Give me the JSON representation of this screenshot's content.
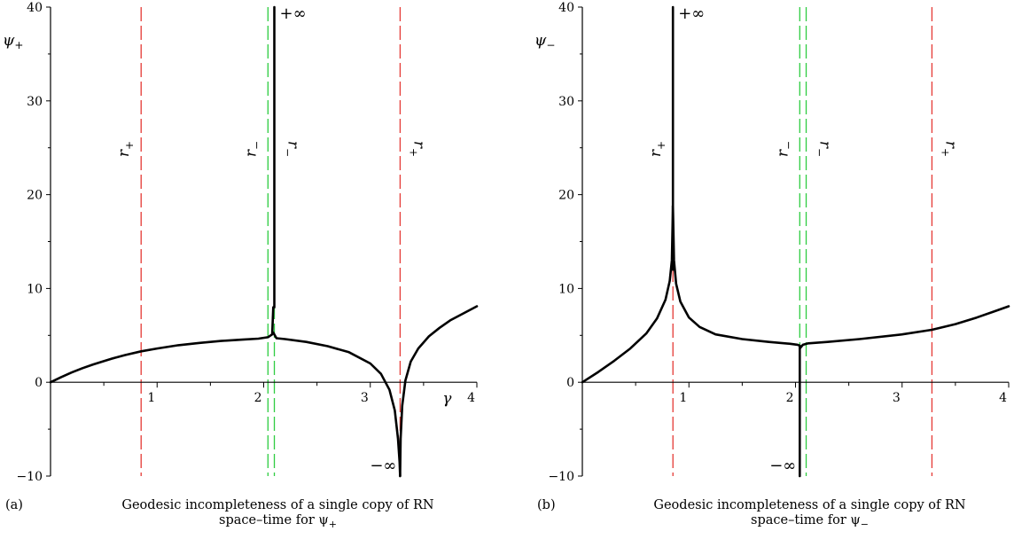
{
  "chart_data": [
    {
      "type": "line",
      "panel_tag": "(a)",
      "caption_line1": "Geodesic incompleteness of a single copy of RN",
      "caption_line2": "space–time for ψ",
      "caption_sub": "+",
      "ylabel": "ψ",
      "ylabel_sub": "+",
      "xlabel": "γ",
      "xlim": [
        0,
        4
      ],
      "ylim": [
        -10,
        40
      ],
      "x_ticks": [
        "1",
        "2",
        "3",
        "4"
      ],
      "y_ticks": [
        "−10",
        "0",
        "10",
        "20",
        "30",
        "40"
      ],
      "y_tick_values": [
        -10,
        0,
        10,
        20,
        30,
        40
      ],
      "x_tick_values": [
        1,
        2,
        3,
        4
      ],
      "vlines": [
        {
          "x": 0.85,
          "color": "#e53935",
          "label": "r",
          "label_sub": "+",
          "label_side": "left",
          "label_dir": "up"
        },
        {
          "x": 2.04,
          "color": "#2ecc40",
          "label": "r",
          "label_sub": "−",
          "label_side": "left",
          "label_dir": "up"
        },
        {
          "x": 2.1,
          "color": "#2ecc40",
          "label": "r",
          "label_sub": "−",
          "label_side": "right",
          "label_dir": "down"
        },
        {
          "x": 3.28,
          "color": "#e53935",
          "label": "r",
          "label_sub": "+",
          "label_side": "right",
          "label_dir": "down"
        }
      ],
      "annotations": [
        {
          "text": "+∞",
          "x": 2.1,
          "y": 40,
          "anchor": "top-right"
        },
        {
          "text": "−∞",
          "x": 3.28,
          "y": -10,
          "anchor": "bottom-left"
        }
      ],
      "series": [
        {
          "x": [
            0,
            0.1,
            0.2,
            0.3,
            0.4,
            0.5,
            0.6,
            0.7,
            0.85,
            1.0,
            1.2,
            1.4,
            1.6,
            1.8,
            1.95,
            2.04,
            2.08,
            2.09
          ],
          "y": [
            0,
            0.55,
            1.05,
            1.5,
            1.9,
            2.25,
            2.6,
            2.9,
            3.3,
            3.6,
            3.95,
            4.2,
            4.4,
            4.55,
            4.65,
            4.8,
            5.1,
            8
          ]
        },
        {
          "x": [
            2.1,
            2.1,
            2.1
          ],
          "y": [
            8,
            25,
            40
          ]
        },
        {
          "x": [
            2.09,
            2.12,
            2.2,
            2.4,
            2.6,
            2.8,
            3.0,
            3.1,
            3.18,
            3.23,
            3.26,
            3.275,
            3.28
          ],
          "y": [
            5.3,
            4.7,
            4.6,
            4.3,
            3.85,
            3.2,
            2.0,
            0.9,
            -0.8,
            -3,
            -6,
            -8.5,
            -10
          ]
        },
        {
          "x": [
            3.28,
            3.285,
            3.3,
            3.33,
            3.38,
            3.45,
            3.55,
            3.65,
            3.75,
            3.85,
            4.0
          ],
          "y": [
            -10,
            -6,
            -2.5,
            0.2,
            2.2,
            3.6,
            4.9,
            5.8,
            6.6,
            7.2,
            8.1
          ]
        }
      ]
    },
    {
      "type": "line",
      "panel_tag": "(b)",
      "caption_line1": "Geodesic incompleteness of a single copy of RN",
      "caption_line2": "space–time for ψ",
      "caption_sub": "−",
      "ylabel": "ψ",
      "ylabel_sub": "−",
      "xlabel": "",
      "xlim": [
        0,
        4
      ],
      "ylim": [
        -10,
        40
      ],
      "x_ticks": [
        "1",
        "2",
        "3",
        "4"
      ],
      "y_ticks": [
        "−10",
        "0",
        "10",
        "20",
        "30",
        "40"
      ],
      "y_tick_values": [
        -10,
        0,
        10,
        20,
        30,
        40
      ],
      "x_tick_values": [
        1,
        2,
        3,
        4
      ],
      "vlines": [
        {
          "x": 0.85,
          "color": "#e53935",
          "label": "r",
          "label_sub": "+",
          "label_side": "left",
          "label_dir": "up"
        },
        {
          "x": 2.04,
          "color": "#2ecc40",
          "label": "r",
          "label_sub": "−",
          "label_side": "left",
          "label_dir": "up"
        },
        {
          "x": 2.1,
          "color": "#2ecc40",
          "label": "r",
          "label_sub": "−",
          "label_side": "right",
          "label_dir": "down"
        },
        {
          "x": 3.28,
          "color": "#e53935",
          "label": "r",
          "label_sub": "+",
          "label_side": "right",
          "label_dir": "down"
        }
      ],
      "annotations": [
        {
          "text": "+∞",
          "x": 0.85,
          "y": 40,
          "anchor": "top-right"
        },
        {
          "text": "−∞",
          "x": 2.04,
          "y": -10,
          "anchor": "bottom-left"
        }
      ],
      "series": [
        {
          "x": [
            0,
            0.15,
            0.3,
            0.45,
            0.6,
            0.7,
            0.78,
            0.82,
            0.84,
            0.85
          ],
          "y": [
            0,
            1.1,
            2.3,
            3.6,
            5.2,
            6.8,
            8.8,
            10.8,
            13,
            18.8
          ]
        },
        {
          "x": [
            0.85,
            0.85,
            0.85
          ],
          "y": [
            12,
            25,
            40
          ]
        },
        {
          "x": [
            0.85,
            0.86,
            0.88,
            0.92,
            1.0,
            1.1,
            1.25,
            1.5,
            1.75,
            1.95,
            2.02,
            2.04
          ],
          "y": [
            18.8,
            13,
            10.5,
            8.6,
            6.9,
            5.9,
            5.1,
            4.6,
            4.3,
            4.1,
            4.0,
            3.9
          ]
        },
        {
          "x": [
            2.04,
            2.04,
            2.04
          ],
          "y": [
            3.9,
            -3,
            -10
          ]
        },
        {
          "x": [
            2.04,
            2.07,
            2.12,
            2.3,
            2.6,
            3.0,
            3.28,
            3.5,
            3.7,
            3.85,
            4.0
          ],
          "y": [
            3.6,
            4.0,
            4.15,
            4.3,
            4.6,
            5.1,
            5.6,
            6.2,
            6.9,
            7.5,
            8.1
          ]
        }
      ]
    }
  ]
}
